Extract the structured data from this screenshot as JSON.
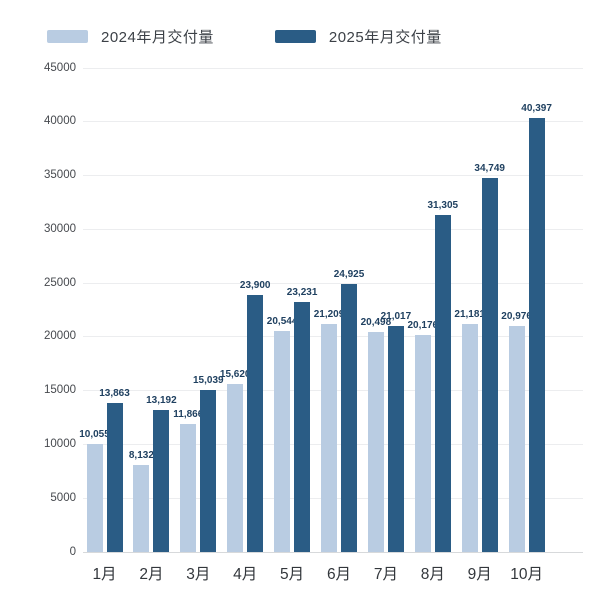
{
  "chart_data": {
    "type": "bar",
    "title": "",
    "categories": [
      "1月",
      "2月",
      "3月",
      "4月",
      "5月",
      "6月",
      "7月",
      "8月",
      "9月",
      "10月"
    ],
    "series": [
      {
        "name": "2024年月交付量",
        "color": "#b9cce2",
        "values": [
          10055,
          8132,
          11866,
          15620,
          20544,
          21209,
          20498,
          20176,
          21181,
          20976
        ],
        "labels": [
          "10,055",
          "8,132",
          "11,866",
          "15,620",
          "20,544",
          "21,209",
          "20,498",
          "20,176",
          "21,181",
          "20,976"
        ]
      },
      {
        "name": "2025年月交付量",
        "color": "#2a5c85",
        "values": [
          13863,
          13192,
          15039,
          23900,
          23231,
          24925,
          21017,
          31305,
          34749,
          40397
        ],
        "labels": [
          "13,863",
          "13,192",
          "15,039",
          "23,900",
          "23,231",
          "24,925",
          "21,017",
          "31,305",
          "34,749",
          "40,397"
        ]
      }
    ],
    "xlabel": "",
    "ylabel": "",
    "ylim": [
      0,
      45000
    ],
    "yticks": [
      0,
      5000,
      10000,
      15000,
      20000,
      25000,
      30000,
      35000,
      40000,
      45000
    ],
    "ytick_labels": [
      "0",
      "5000",
      "10000",
      "15000",
      "20000",
      "25000",
      "30000",
      "35000",
      "40000",
      "45000"
    ],
    "grid": "horizontal",
    "legend_position": "top-left",
    "label_color": "#1f4060",
    "axis_text_color": "#46494e",
    "grid_color": "#ecedef",
    "background_color": "#ffffff"
  }
}
